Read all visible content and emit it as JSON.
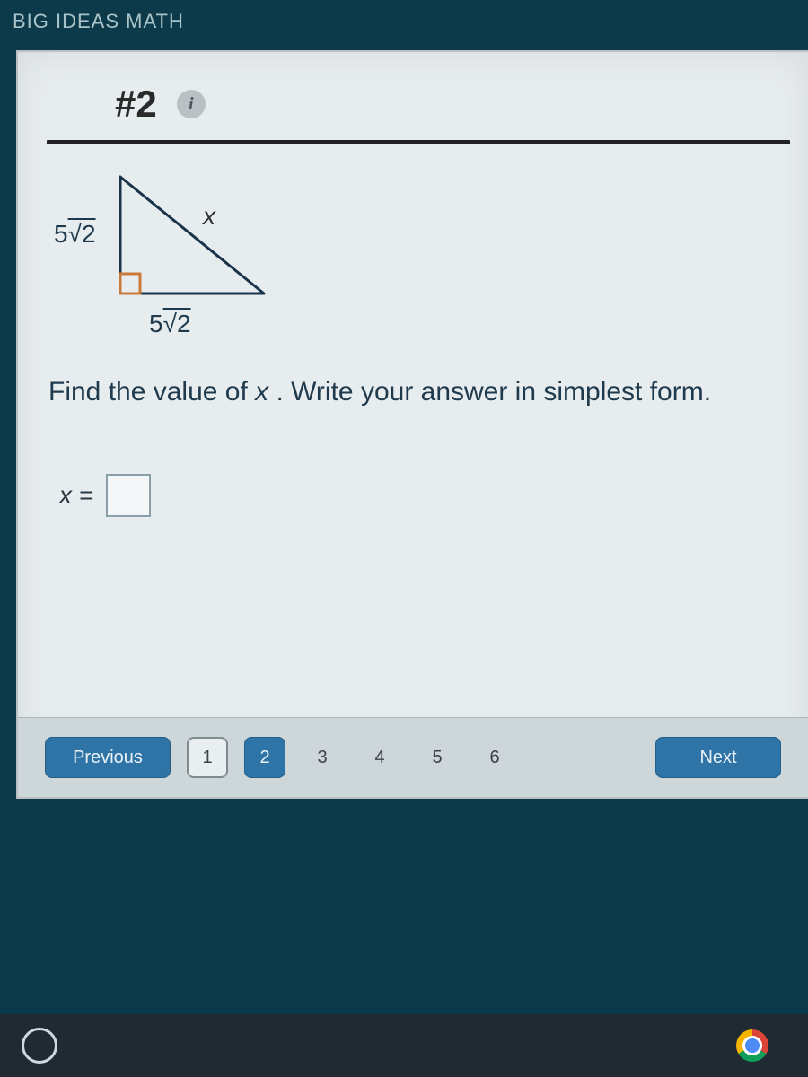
{
  "header": {
    "brand": "BIG IDEAS MATH"
  },
  "problem": {
    "number_label": "#2",
    "info_glyph": "i",
    "triangle": {
      "leg_left_label_html": "5<span class='sqrt-vinc'>√2</span>",
      "leg_bottom_label_html": "5<span class='sqrt-vinc'>√2</span>",
      "hypotenuse_label": "x",
      "stroke_color": "#18334a",
      "right_angle_marker_color": "#c97a3a"
    },
    "prompt_html": "Find the value of <span class='xi'>x</span> . Write your answer in simplest form.",
    "answer_label": "x =",
    "answer_value": ""
  },
  "nav": {
    "previous_label": "Previous",
    "next_label": "Next",
    "pages": [
      {
        "n": "1",
        "state": "done"
      },
      {
        "n": "2",
        "state": "active"
      },
      {
        "n": "3",
        "state": "future"
      },
      {
        "n": "4",
        "state": "future"
      },
      {
        "n": "5",
        "state": "future"
      },
      {
        "n": "6",
        "state": "future"
      }
    ]
  },
  "colors": {
    "page_bg": "#0d3a4a",
    "panel_bg": "#e7ecee",
    "navbar_bg": "#cdd6d9",
    "primary_btn": "#2f74a6",
    "text_dark": "#1f3a4d"
  }
}
